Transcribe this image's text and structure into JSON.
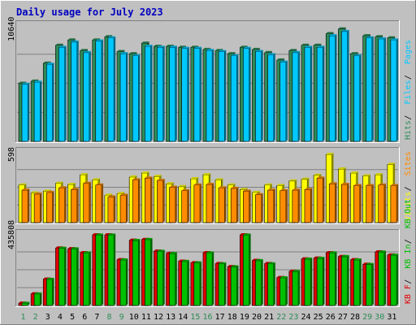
{
  "chart_data": {
    "type": "bar",
    "title": "Daily usage for July 2023",
    "categories": [
      "1",
      "2",
      "3",
      "4",
      "5",
      "6",
      "7",
      "8",
      "9",
      "10",
      "11",
      "12",
      "13",
      "14",
      "15",
      "16",
      "17",
      "18",
      "19",
      "20",
      "21",
      "22",
      "23",
      "24",
      "25",
      "26",
      "27",
      "28",
      "29",
      "30",
      "31"
    ],
    "weekend_days": [
      "1",
      "2",
      "8",
      "9",
      "15",
      "16",
      "22",
      "23",
      "29",
      "30"
    ],
    "colors": {
      "hits": "#2e8b57",
      "files": "#00c8ff",
      "pages": "#00c8ff",
      "visits": "#ffff00",
      "sites": "#ff8c00",
      "kb_in": "#00c000",
      "kb_out": "#00c000",
      "kb_f": "#e00000",
      "title": "#0000c0",
      "weekend_label": "#2e8b57",
      "weekday_label": "#000000",
      "background": "#c0c0c0"
    },
    "panels": [
      {
        "id": "hits-files-pages",
        "max_label": "10640",
        "ymax": 11000,
        "legend": [
          {
            "text": "Hits",
            "color": "#2e8b57"
          },
          {
            "text": "Files",
            "color": "#00c8ff"
          },
          {
            "text": "Pages",
            "color": "#00c8ff"
          }
        ],
        "series": [
          {
            "name": "Hits",
            "color": "#2e8b57",
            "values": [
              5500,
              5700,
              7400,
              9100,
              9600,
              8600,
              9600,
              9900,
              8500,
              8300,
              9300,
              9000,
              9000,
              8900,
              8900,
              8700,
              8600,
              8300,
              8900,
              8700,
              8400,
              7700,
              8600,
              9100,
              9100,
              10200,
              10640,
              8300,
              10000,
              9900,
              9800
            ]
          },
          {
            "name": "Files",
            "color": "#00c8ff",
            "values": [
              5400,
              5600,
              7300,
              8900,
              9400,
              8400,
              9500,
              9800,
              8300,
              8100,
              9000,
              8900,
              8900,
              8800,
              8800,
              8600,
              8500,
              8100,
              8800,
              8500,
              8200,
              7500,
              8400,
              8900,
              8900,
              10000,
              10400,
              8100,
              9800,
              9700,
              9600
            ]
          }
        ]
      },
      {
        "id": "visits-sites",
        "max_label": "598",
        "ymax": 620,
        "legend": [
          {
            "text": "Visits",
            "color": "#ffff00"
          },
          {
            "text": "Sites",
            "color": "#ff8c00"
          }
        ],
        "series": [
          {
            "name": "Visits",
            "color": "#ffff00",
            "values": [
              330,
              260,
              275,
              345,
              335,
              420,
              375,
              240,
              255,
              400,
              435,
              405,
              340,
              315,
              385,
              420,
              375,
              330,
              290,
              265,
              330,
              325,
              365,
              380,
              415,
              598,
              470,
              435,
              410,
              420,
              510
            ]
          },
          {
            "name": "Sites",
            "color": "#ff8c00",
            "values": [
              285,
              250,
              265,
              305,
              290,
              345,
              330,
              225,
              240,
              375,
              390,
              370,
              310,
              280,
              330,
              335,
              305,
              300,
              275,
              245,
              285,
              280,
              285,
              290,
              390,
              340,
              335,
              325,
              325,
              330,
              325
            ]
          }
        ]
      },
      {
        "id": "kbin-kbout",
        "max_label": "435808",
        "ymax": 460000,
        "legend": [
          {
            "text": "KB F",
            "color": "#e00000"
          },
          {
            "text": "KB In",
            "color": "#00c000"
          },
          {
            "text": "KB Out",
            "color": "#00c000"
          }
        ],
        "series": [
          {
            "name": "KB F",
            "color": "#e00000",
            "values": [
              15000,
              75000,
              170000,
              370000,
              365000,
              340000,
              455000,
              455000,
              295000,
              420000,
              425000,
              350000,
              335000,
              285000,
              275000,
              340000,
              270000,
              250000,
              455000,
              290000,
              270000,
              180000,
              220000,
              300000,
              305000,
              340000,
              315000,
              295000,
              265000,
              345000,
              325000
            ]
          },
          {
            "name": "KB In",
            "color": "#00c000",
            "values": [
              14000,
              74000,
              168000,
              368000,
              364000,
              338000,
              453000,
              453000,
              293000,
              418000,
              424000,
              348000,
              334000,
              283000,
              274000,
              338000,
              268000,
              248000,
              453000,
              288000,
              268000,
              178000,
              218000,
              298000,
              303000,
              338000,
              314000,
              293000,
              263000,
              343000,
              323000
            ]
          }
        ]
      }
    ]
  }
}
